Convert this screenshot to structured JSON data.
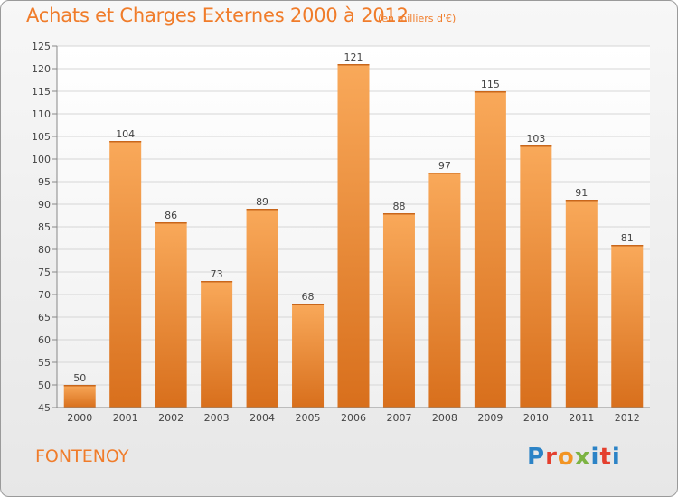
{
  "header": {
    "title": "Achats et Charges Externes 2000 à 2012",
    "subtitle": "(en milliers d'€)"
  },
  "footer": {
    "city": "FONTENOY",
    "logo_letters": [
      "P",
      "r",
      "o",
      "x",
      "i",
      "t",
      "i"
    ]
  },
  "colors": {
    "accent": "#f07c2a",
    "bar_top": "#f9a95a",
    "bar_bottom": "#d86f1c"
  },
  "chart_data": {
    "type": "bar",
    "title": "Achats et Charges Externes 2000 à 2012",
    "subtitle": "(en milliers d'€)",
    "categories": [
      "2000",
      "2001",
      "2002",
      "2003",
      "2004",
      "2005",
      "2006",
      "2007",
      "2008",
      "2009",
      "2010",
      "2011",
      "2012"
    ],
    "values": [
      50,
      104,
      86,
      73,
      89,
      68,
      121,
      88,
      97,
      115,
      103,
      91,
      81
    ],
    "ylim": [
      45,
      125
    ],
    "yticks": [
      45,
      50,
      55,
      60,
      65,
      70,
      75,
      80,
      85,
      90,
      95,
      100,
      105,
      110,
      115,
      120,
      125
    ],
    "grid": true,
    "legend": "none"
  }
}
